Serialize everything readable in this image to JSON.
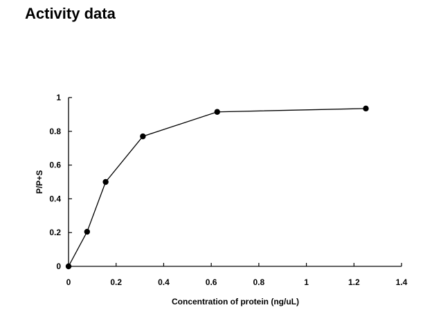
{
  "page": {
    "title": "Activity data"
  },
  "chart_data": {
    "type": "line",
    "title": "",
    "xlabel": "Concentration of protein (ng/uL)",
    "ylabel": "P/P+S",
    "xlim": [
      0,
      1.4
    ],
    "ylim": [
      0,
      1
    ],
    "xticks": [
      0,
      0.2,
      0.4,
      0.6,
      0.8,
      1,
      1.2,
      1.4
    ],
    "yticks": [
      0,
      0.2,
      0.4,
      0.6,
      0.8,
      1
    ],
    "grid": false,
    "legend": "none",
    "series": [
      {
        "x": [
          0,
          0.078,
          0.156,
          0.3125,
          0.625,
          1.25
        ],
        "y": [
          0,
          0.205,
          0.5,
          0.77,
          0.915,
          0.935
        ],
        "color": "#000000",
        "marker": "circle"
      }
    ]
  }
}
